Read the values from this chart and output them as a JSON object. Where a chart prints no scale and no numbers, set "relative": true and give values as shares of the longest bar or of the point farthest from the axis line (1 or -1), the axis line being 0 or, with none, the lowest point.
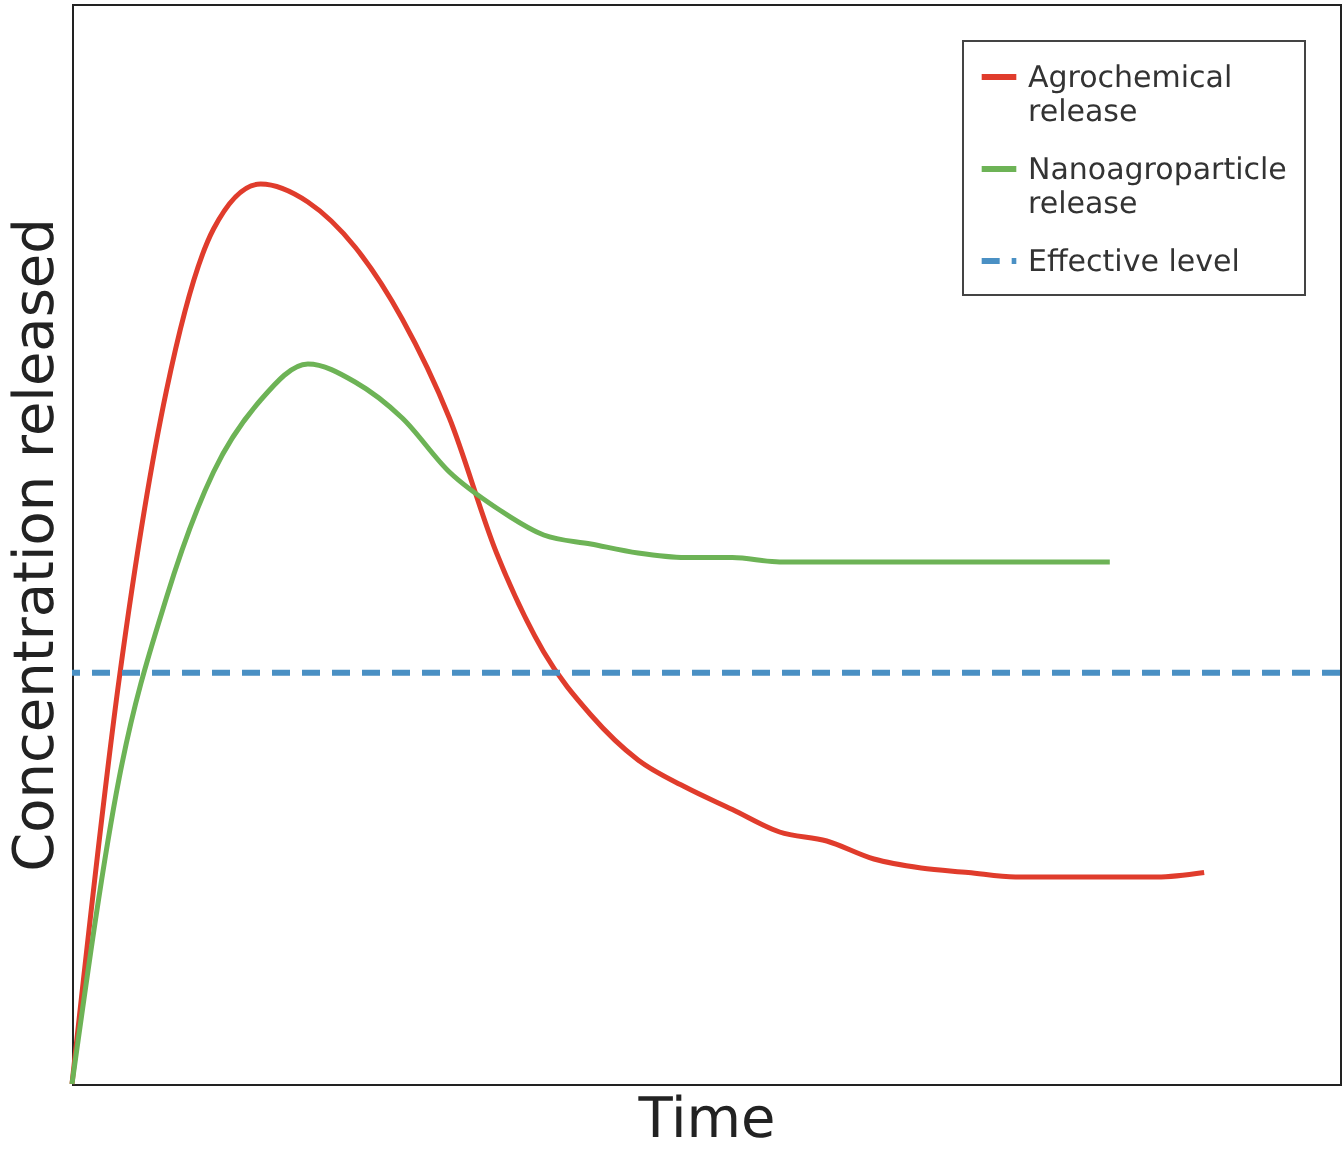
{
  "chart_data": {
    "type": "line",
    "relative": true,
    "xlabel": "Time",
    "ylabel": "Concentration released",
    "categories": [
      null,
      null,
      null,
      null,
      null,
      null,
      null,
      null,
      null,
      null,
      null,
      null,
      null,
      null,
      null,
      null,
      null,
      null,
      null,
      null,
      null,
      null,
      null,
      null,
      null
    ],
    "series": [
      {
        "name": "Agrochemical release",
        "color": "#e03c2c",
        "values": [
          0,
          0.45,
          0.77,
          0.95,
          1.0,
          0.98,
          0.93,
          0.85,
          0.74,
          0.59,
          0.48,
          0.41,
          0.36,
          0.33,
          0.305,
          0.28,
          0.27,
          0.25,
          0.24,
          0.235,
          0.23,
          0.23,
          0.23,
          0.23,
          0.235
        ]
      },
      {
        "name": "Nanoagroparticle release",
        "color": "#6db356",
        "values": [
          0,
          0.34,
          0.54,
          0.68,
          0.76,
          0.8,
          0.78,
          0.74,
          0.68,
          0.64,
          0.61,
          0.6,
          0.59,
          0.585,
          0.585,
          0.58,
          0.58,
          0.58,
          0.58,
          0.58,
          0.58,
          0.58,
          0.58,
          null,
          null
        ]
      }
    ],
    "ref_lines": [
      {
        "axis": "y",
        "value": 0.457,
        "label": "Effective level",
        "color": "#4a90c4",
        "line_style": "dashed"
      }
    ],
    "legend": "top right",
    "marker": "none",
    "line_style": "solid"
  }
}
